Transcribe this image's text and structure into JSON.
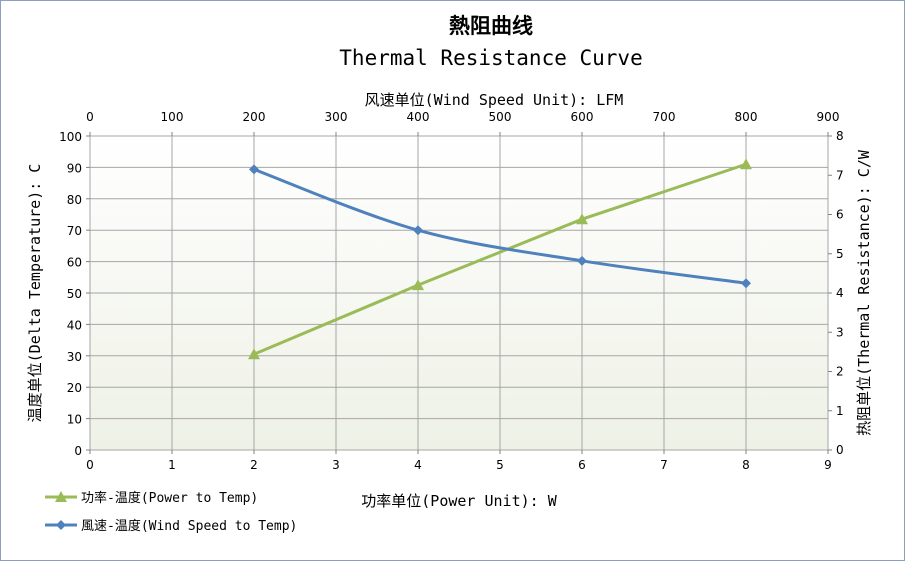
{
  "chart_data": {
    "type": "line",
    "title": "熱阻曲线",
    "subtitle": "Thermal Resistance Curve",
    "x_bottom": {
      "label": "功率单位(Power Unit): W",
      "range": [
        0,
        9
      ],
      "ticks": [
        "0",
        "1",
        "2",
        "3",
        "4",
        "5",
        "6",
        "7",
        "8",
        "9"
      ]
    },
    "x_top": {
      "label": "风速单位(Wind Speed Unit): LFM",
      "range": [
        0,
        900
      ],
      "ticks": [
        "0",
        "100",
        "200",
        "300",
        "400",
        "500",
        "600",
        "700",
        "800",
        "900"
      ]
    },
    "y_left": {
      "label": "温度单位(Delta Temperature): C",
      "range": [
        0,
        100
      ],
      "ticks": [
        "0",
        "10",
        "20",
        "30",
        "40",
        "50",
        "60",
        "70",
        "80",
        "90",
        "100"
      ]
    },
    "y_right": {
      "label": "热阻单位(Thermal Resistance): C/W",
      "range": [
        0,
        8
      ],
      "ticks": [
        "0",
        "1",
        "2",
        "3",
        "4",
        "5",
        "6",
        "7",
        "8"
      ]
    },
    "grid": true,
    "legend_position": "bottom-left",
    "series": [
      {
        "name": "功率-温度(Power to Temp)",
        "axis": "bottom-left",
        "color": "#9bbb59",
        "marker": "triangle",
        "x": [
          2,
          4,
          6,
          8
        ],
        "y": [
          30.5,
          52.5,
          73.5,
          91
        ]
      },
      {
        "name": "風速-温度(Wind Speed to Temp)",
        "axis": "top-right",
        "color": "#4f81bd",
        "marker": "diamond",
        "smooth": true,
        "x": [
          200,
          400,
          600,
          800
        ],
        "y": [
          7.15,
          5.6,
          4.82,
          4.25
        ]
      }
    ]
  }
}
